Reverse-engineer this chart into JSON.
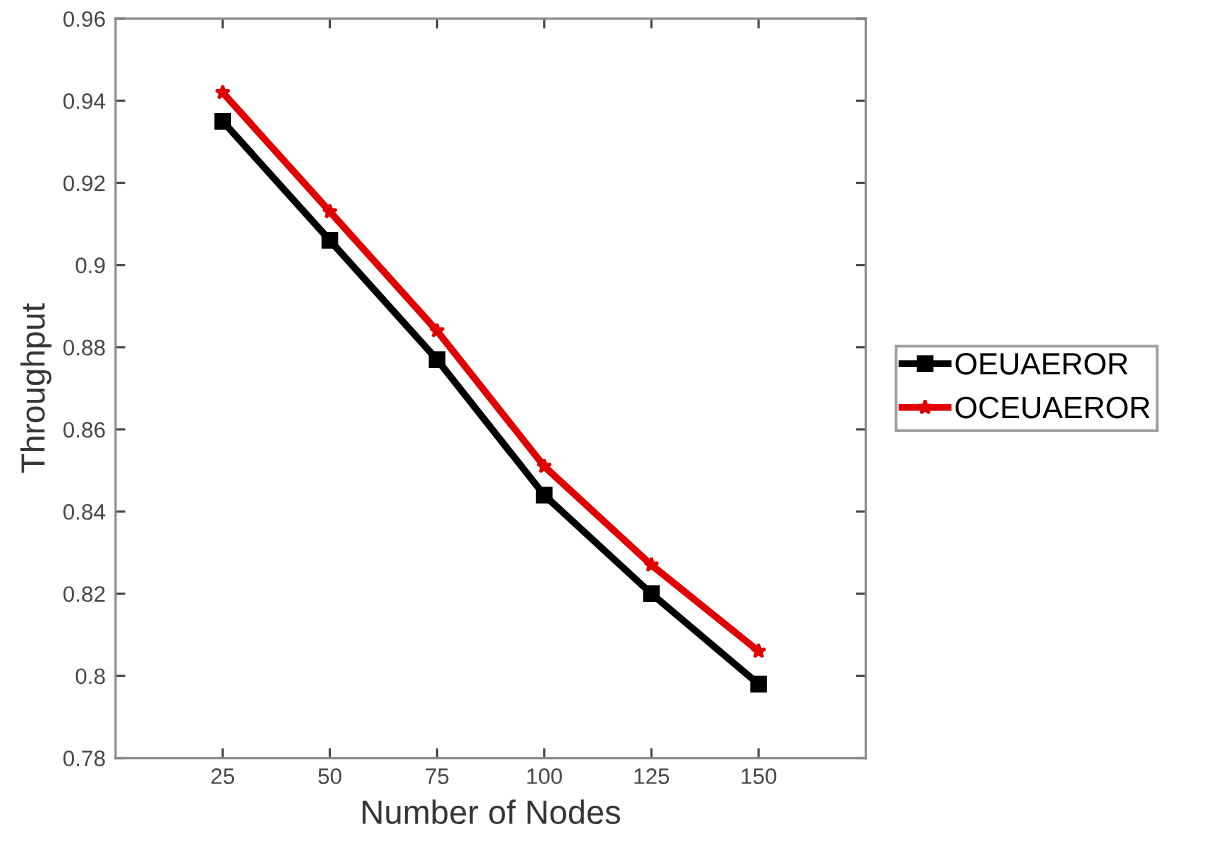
{
  "chart_data": {
    "type": "line",
    "xlabel": "Number of Nodes",
    "ylabel": "Throughput",
    "x": [
      25,
      50,
      75,
      100,
      125,
      150
    ],
    "xlim": [
      0,
      175
    ],
    "xticks": [
      25,
      50,
      75,
      100,
      125,
      150
    ],
    "ylim": [
      0.78,
      0.96
    ],
    "yticks": [
      {
        "value": 0.78,
        "label": "0.78"
      },
      {
        "value": 0.8,
        "label": "0.8"
      },
      {
        "value": 0.82,
        "label": "0.82"
      },
      {
        "value": 0.84,
        "label": "0.84"
      },
      {
        "value": 0.86,
        "label": "0.86"
      },
      {
        "value": 0.88,
        "label": "0.88"
      },
      {
        "value": 0.9,
        "label": "0.9"
      },
      {
        "value": 0.92,
        "label": "0.92"
      },
      {
        "value": 0.94,
        "label": "0.94"
      },
      {
        "value": 0.96,
        "label": "0.96"
      }
    ],
    "series": [
      {
        "name": "OEUAEROR",
        "color": "#000000",
        "marker": "square",
        "values": [
          0.935,
          0.906,
          0.877,
          0.844,
          0.82,
          0.798
        ]
      },
      {
        "name": "OCEUAEROR",
        "color": "#e00000",
        "marker": "star",
        "values": [
          0.942,
          0.913,
          0.884,
          0.851,
          0.827,
          0.806
        ]
      }
    ],
    "line_style": "solid",
    "grid": false,
    "legend": "right"
  }
}
